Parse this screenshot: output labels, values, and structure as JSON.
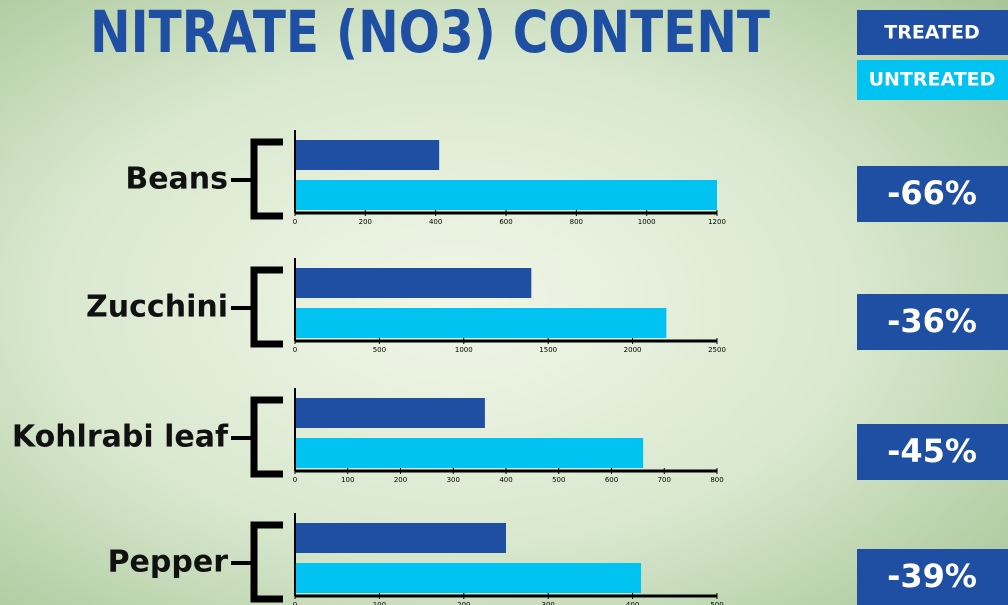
{
  "title": "NITRATE (NO3) CONTENT",
  "chart_data": [
    {
      "type": "bar",
      "orientation": "horizontal",
      "categories": [
        "Beans"
      ],
      "series": [
        {
          "name": "TREATED",
          "color": "#1f4fa3",
          "values": [
            410
          ]
        },
        {
          "name": "UNTREATED",
          "color": "#00c3f2",
          "values": [
            1200
          ]
        }
      ],
      "xlim": [
        0,
        1200
      ],
      "xticks": [
        0,
        200,
        400,
        600,
        800,
        1000,
        1200
      ],
      "annotation": "-66%"
    },
    {
      "type": "bar",
      "orientation": "horizontal",
      "categories": [
        "Zucchini"
      ],
      "series": [
        {
          "name": "TREATED",
          "color": "#1f4fa3",
          "values": [
            1400
          ]
        },
        {
          "name": "UNTREATED",
          "color": "#00c3f2",
          "values": [
            2200
          ]
        }
      ],
      "xlim": [
        0,
        2500
      ],
      "xticks": [
        0,
        500,
        1000,
        1500,
        2000,
        2500
      ],
      "annotation": "-36%"
    },
    {
      "type": "bar",
      "orientation": "horizontal",
      "categories": [
        "Kohlrabi leaf"
      ],
      "series": [
        {
          "name": "TREATED",
          "color": "#1f4fa3",
          "values": [
            360
          ]
        },
        {
          "name": "UNTREATED",
          "color": "#00c3f2",
          "values": [
            660
          ]
        }
      ],
      "xlim": [
        0,
        800
      ],
      "xticks": [
        0,
        100,
        200,
        300,
        400,
        500,
        600,
        700,
        800
      ],
      "annotation": "-45%"
    },
    {
      "type": "bar",
      "orientation": "horizontal",
      "categories": [
        "Pepper"
      ],
      "series": [
        {
          "name": "TREATED",
          "color": "#1f4fa3",
          "values": [
            250
          ]
        },
        {
          "name": "UNTREATED",
          "color": "#00c3f2",
          "values": [
            410
          ]
        }
      ],
      "xlim": [
        0,
        500
      ],
      "xticks": [
        0,
        100,
        200,
        300,
        400,
        500
      ],
      "annotation": "-39%"
    }
  ]
}
